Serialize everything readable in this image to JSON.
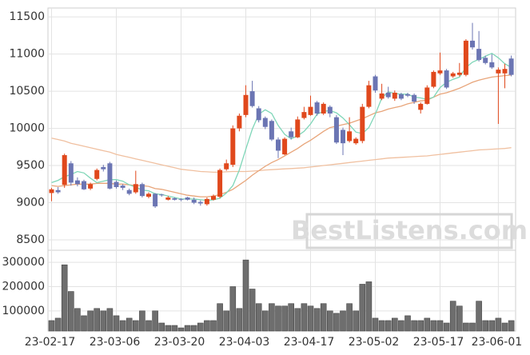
{
  "chart_data": {
    "type": "candlestick",
    "grid": true,
    "categories": [
      "23-02-17",
      null,
      null,
      null,
      null,
      null,
      null,
      null,
      null,
      null,
      "23-03-06",
      null,
      null,
      null,
      null,
      null,
      null,
      null,
      null,
      null,
      "23-03-20",
      null,
      null,
      null,
      null,
      null,
      null,
      null,
      null,
      null,
      "23-04-03",
      null,
      null,
      null,
      null,
      null,
      null,
      null,
      null,
      null,
      "23-04-17",
      null,
      null,
      null,
      null,
      null,
      null,
      null,
      null,
      null,
      "23-05-02",
      null,
      null,
      null,
      null,
      null,
      null,
      null,
      null,
      null,
      "23-05-17",
      null,
      null,
      null,
      null,
      null,
      null,
      null,
      null,
      "23-06-01",
      null,
      null
    ],
    "open": [
      9130,
      9170,
      9240,
      9530,
      9300,
      9290,
      9190,
      9320,
      9480,
      9530,
      9280,
      9230,
      9170,
      9140,
      9250,
      9080,
      9120,
      9110,
      9040,
      9060,
      9050,
      9070,
      9040,
      9010,
      8980,
      9040,
      9080,
      9450,
      9510,
      10000,
      10180,
      10500,
      10270,
      10140,
      10100,
      9850,
      9650,
      9960,
      9880,
      10140,
      10180,
      10350,
      10200,
      10290,
      10150,
      9980,
      9830,
      9800,
      9830,
      10290,
      10700,
      10400,
      10480,
      10400,
      10460,
      10460,
      10450,
      10250,
      10330,
      10560,
      10740,
      10780,
      10700,
      10720,
      10720,
      11180,
      11070,
      10950,
      10890,
      10740,
      10740,
      10940
    ],
    "high": [
      9200,
      9210,
      9660,
      9560,
      9340,
      9310,
      9270,
      9460,
      9510,
      9550,
      9300,
      9250,
      9190,
      9430,
      9270,
      9140,
      9130,
      9120,
      9090,
      9070,
      9060,
      9080,
      9070,
      9030,
      9070,
      9110,
      9460,
      9580,
      10040,
      10200,
      10580,
      10640,
      10300,
      10160,
      10120,
      9880,
      9880,
      10010,
      10160,
      10290,
      10440,
      10370,
      10350,
      10310,
      10180,
      10010,
      10150,
      9880,
      10330,
      10640,
      10720,
      10600,
      10560,
      10510,
      10480,
      10480,
      10470,
      10350,
      10580,
      10780,
      11020,
      10800,
      10760,
      10880,
      11200,
      11420,
      11310,
      10980,
      11000,
      10820,
      10870,
      10980
    ],
    "low": [
      9020,
      9120,
      9200,
      9230,
      9220,
      9170,
      9170,
      9300,
      9420,
      9180,
      9190,
      9170,
      9100,
      9120,
      9070,
      9060,
      8930,
      9080,
      9030,
      9030,
      9020,
      9030,
      8980,
      8960,
      8960,
      9030,
      9060,
      9430,
      9480,
      9960,
      10150,
      10280,
      10080,
      9990,
      9830,
      9600,
      9640,
      9850,
      9870,
      10120,
      10170,
      10170,
      10180,
      10150,
      9790,
      9640,
      9810,
      9780,
      9800,
      10270,
      10480,
      10380,
      10400,
      10370,
      10380,
      10420,
      10330,
      10200,
      10320,
      10540,
      10720,
      10530,
      10680,
      10700,
      10700,
      11060,
      10900,
      10860,
      10800,
      10060,
      10540,
      10700
    ],
    "close": [
      9180,
      9140,
      9640,
      9270,
      9250,
      9180,
      9250,
      9440,
      9450,
      9190,
      9210,
      9200,
      9120,
      9250,
      9090,
      9120,
      8950,
      9100,
      9070,
      9040,
      9040,
      9040,
      9000,
      8990,
      9050,
      9090,
      9440,
      9530,
      10000,
      10170,
      10450,
      10300,
      10110,
      10020,
      9850,
      9700,
      9860,
      9880,
      10120,
      10220,
      10290,
      10200,
      10330,
      10200,
      9810,
      9800,
      9960,
      9860,
      10290,
      10580,
      10510,
      10470,
      10420,
      10480,
      10400,
      10440,
      10360,
      10330,
      10550,
      10760,
      10780,
      10550,
      10740,
      10750,
      11180,
      11090,
      10920,
      10880,
      10820,
      10790,
      10800,
      10720
    ],
    "up_color": "#e0481c",
    "down_color": "#6b75b3",
    "ylim": [
      8360,
      11620
    ],
    "yticks": [
      8500,
      9000,
      9500,
      10000,
      10500,
      11000,
      11500
    ],
    "moving_averages": [
      {
        "color": "#f0c0a0",
        "values": [
          9870,
          9850,
          9830,
          9800,
          9780,
          9760,
          9740,
          9720,
          9700,
          9680,
          9650,
          9630,
          9610,
          9590,
          9570,
          9550,
          9530,
          9510,
          9490,
          9470,
          9450,
          9440,
          9430,
          9420,
          9415,
          9410,
          9410,
          9415,
          9420,
          9420,
          9420,
          9425,
          9430,
          9440,
          9445,
          9450,
          9455,
          9460,
          9465,
          9470,
          9480,
          9490,
          9500,
          9510,
          9520,
          9530,
          9540,
          9550,
          9560,
          9570,
          9580,
          9590,
          9600,
          9605,
          9610,
          9615,
          9620,
          9625,
          9630,
          9640,
          9650,
          9660,
          9670,
          9680,
          9690,
          9700,
          9710,
          9715,
          9720,
          9725,
          9730,
          9740
        ]
      },
      {
        "color": "#e8a57a",
        "values": [
          9230,
          9220,
          9230,
          9240,
          9250,
          9250,
          9250,
          9260,
          9260,
          9260,
          9250,
          9250,
          9240,
          9230,
          9230,
          9220,
          9190,
          9180,
          9160,
          9140,
          9120,
          9100,
          9090,
          9080,
          9080,
          9090,
          9110,
          9140,
          9180,
          9240,
          9300,
          9370,
          9430,
          9490,
          9540,
          9580,
          9630,
          9680,
          9730,
          9790,
          9840,
          9900,
          9960,
          10010,
          10030,
          10050,
          10070,
          10100,
          10130,
          10170,
          10210,
          10230,
          10260,
          10280,
          10300,
          10330,
          10350,
          10370,
          10380,
          10420,
          10460,
          10480,
          10510,
          10540,
          10580,
          10620,
          10650,
          10670,
          10690,
          10700,
          10710,
          10720
        ]
      },
      {
        "color": "#7fd6b8",
        "values": [
          9270,
          9300,
          9350,
          9380,
          9420,
          9400,
          9330,
          9270,
          9290,
          9310,
          9310,
          9290,
          9240,
          9210,
          9170,
          9160,
          9120,
          9110,
          9090,
          9070,
          9050,
          9050,
          9050,
          9040,
          9030,
          9040,
          9060,
          9130,
          9230,
          9440,
          9720,
          9990,
          10190,
          10250,
          10200,
          10040,
          9920,
          9860,
          9900,
          9960,
          10060,
          10190,
          10230,
          10240,
          10210,
          10140,
          10050,
          9950,
          9930,
          10010,
          10190,
          10410,
          10490,
          10470,
          10460,
          10460,
          10420,
          10410,
          10390,
          10420,
          10550,
          10620,
          10660,
          10690,
          10820,
          10890,
          10930,
          10970,
          11010,
          10950,
          10870,
          10820
        ]
      }
    ],
    "volume": {
      "color": "#6e6e6e",
      "values": [
        60000,
        70000,
        290000,
        180000,
        110000,
        80000,
        100000,
        110000,
        100000,
        110000,
        80000,
        60000,
        70000,
        60000,
        100000,
        60000,
        100000,
        50000,
        40000,
        40000,
        30000,
        40000,
        40000,
        50000,
        60000,
        60000,
        130000,
        100000,
        200000,
        110000,
        310000,
        190000,
        130000,
        100000,
        130000,
        120000,
        120000,
        130000,
        110000,
        130000,
        120000,
        110000,
        130000,
        100000,
        90000,
        100000,
        130000,
        100000,
        210000,
        220000,
        70000,
        60000,
        60000,
        70000,
        60000,
        80000,
        60000,
        60000,
        70000,
        60000,
        60000,
        50000,
        140000,
        120000,
        50000,
        50000,
        140000,
        60000,
        60000,
        70000,
        50000,
        60000
      ],
      "ylim": [
        17000,
        350000
      ],
      "yticks": [
        100000,
        200000,
        300000
      ]
    },
    "watermark": "BestListens.com"
  }
}
